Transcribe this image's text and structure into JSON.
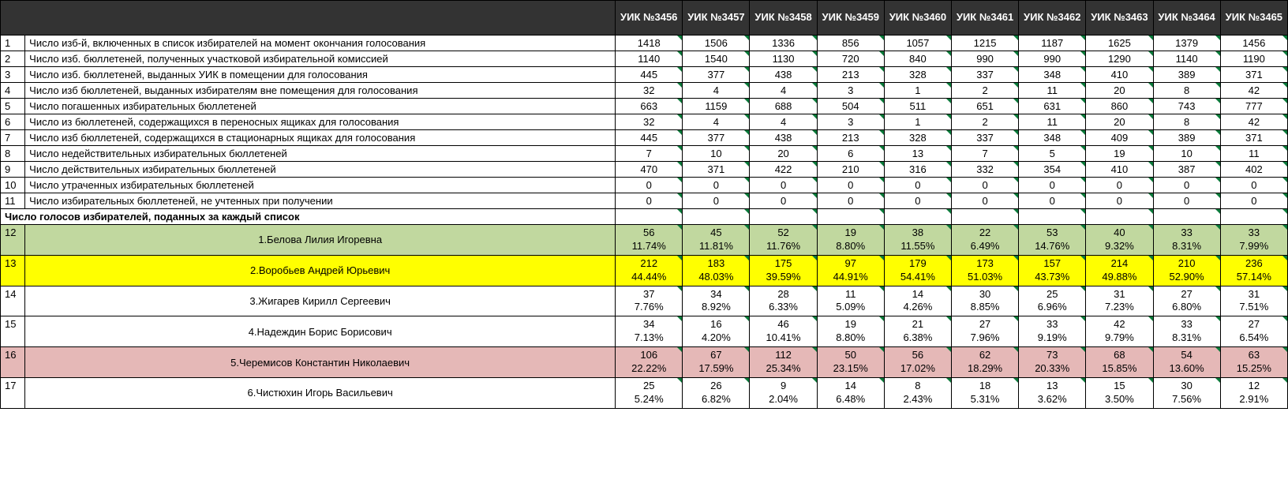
{
  "headers": {
    "label": "",
    "cols": [
      "УИК №3456",
      "УИК №3457",
      "УИК №3458",
      "УИК №3459",
      "УИК №3460",
      "УИК №3461",
      "УИК №3462",
      "УИК №3463",
      "УИК №3464",
      "УИК №3465"
    ]
  },
  "rows": [
    {
      "n": "1",
      "label": "Число изб-й, включенных в список избирателей на момент окончания голосования",
      "vals": [
        "1418",
        "1506",
        "1336",
        "856",
        "1057",
        "1215",
        "1187",
        "1625",
        "1379",
        "1456"
      ]
    },
    {
      "n": "2",
      "label": "Число изб. бюллетеней, полученных участковой избирательной комиссией",
      "vals": [
        "1140",
        "1540",
        "1130",
        "720",
        "840",
        "990",
        "990",
        "1290",
        "1140",
        "1190"
      ]
    },
    {
      "n": "3",
      "label": "Число изб. бюллетеней, выданных УИК в помещении для голосования",
      "vals": [
        "445",
        "377",
        "438",
        "213",
        "328",
        "337",
        "348",
        "410",
        "389",
        "371"
      ]
    },
    {
      "n": "4",
      "label": "Число изб бюллетеней, выданных избирателям вне помещения для голосования",
      "vals": [
        "32",
        "4",
        "4",
        "3",
        "1",
        "2",
        "11",
        "20",
        "8",
        "42"
      ]
    },
    {
      "n": "5",
      "label": "Число погашенных избирательных бюллетеней",
      "vals": [
        "663",
        "1159",
        "688",
        "504",
        "511",
        "651",
        "631",
        "860",
        "743",
        "777"
      ]
    },
    {
      "n": "6",
      "label": "Число из бюллетеней, содержащихся в переносных ящиках для голосования",
      "vals": [
        "32",
        "4",
        "4",
        "3",
        "1",
        "2",
        "11",
        "20",
        "8",
        "42"
      ]
    },
    {
      "n": "7",
      "label": "Число изб бюллетеней, содержащихся в стационарных ящиках для голосования",
      "vals": [
        "445",
        "377",
        "438",
        "213",
        "328",
        "337",
        "348",
        "409",
        "389",
        "371"
      ]
    },
    {
      "n": "8",
      "label": "Число недействительных избирательных бюллетеней",
      "vals": [
        "7",
        "10",
        "20",
        "6",
        "13",
        "7",
        "5",
        "19",
        "10",
        "11"
      ]
    },
    {
      "n": "9",
      "label": "Число действительных избирательных бюллетеней",
      "vals": [
        "470",
        "371",
        "422",
        "210",
        "316",
        "332",
        "354",
        "410",
        "387",
        "402"
      ]
    },
    {
      "n": "10",
      "label": "Число утраченных избирательных бюллетеней",
      "vals": [
        "0",
        "0",
        "0",
        "0",
        "0",
        "0",
        "0",
        "0",
        "0",
        "0"
      ]
    },
    {
      "n": "11",
      "label": "Число избирательных бюллетеней, не учтенных при получении",
      "vals": [
        "0",
        "0",
        "0",
        "0",
        "0",
        "0",
        "0",
        "0",
        "0",
        "0"
      ]
    }
  ],
  "section_title": "Число голосов избирателей, поданных за каждый список",
  "candidates": [
    {
      "n": "12",
      "label": "1.Белова Лилия Игоревна",
      "bg": "bg-green",
      "vals": [
        {
          "v": "56",
          "p": "11.74%"
        },
        {
          "v": "45",
          "p": "11.81%"
        },
        {
          "v": "52",
          "p": "11.76%"
        },
        {
          "v": "19",
          "p": "8.80%"
        },
        {
          "v": "38",
          "p": "11.55%"
        },
        {
          "v": "22",
          "p": "6.49%"
        },
        {
          "v": "53",
          "p": "14.76%"
        },
        {
          "v": "40",
          "p": "9.32%"
        },
        {
          "v": "33",
          "p": "8.31%"
        },
        {
          "v": "33",
          "p": "7.99%"
        }
      ]
    },
    {
      "n": "13",
      "label": "2.Воробьев Андрей Юрьевич",
      "bg": "bg-yellow",
      "vals": [
        {
          "v": "212",
          "p": "44.44%"
        },
        {
          "v": "183",
          "p": "48.03%"
        },
        {
          "v": "175",
          "p": "39.59%"
        },
        {
          "v": "97",
          "p": "44.91%"
        },
        {
          "v": "179",
          "p": "54.41%"
        },
        {
          "v": "173",
          "p": "51.03%"
        },
        {
          "v": "157",
          "p": "43.73%"
        },
        {
          "v": "214",
          "p": "49.88%"
        },
        {
          "v": "210",
          "p": "52.90%"
        },
        {
          "v": "236",
          "p": "57.14%"
        }
      ]
    },
    {
      "n": "14",
      "label": "3.Жигарев Кирилл Сергеевич",
      "bg": "",
      "vals": [
        {
          "v": "37",
          "p": "7.76%"
        },
        {
          "v": "34",
          "p": "8.92%"
        },
        {
          "v": "28",
          "p": "6.33%"
        },
        {
          "v": "11",
          "p": "5.09%"
        },
        {
          "v": "14",
          "p": "4.26%"
        },
        {
          "v": "30",
          "p": "8.85%"
        },
        {
          "v": "25",
          "p": "6.96%"
        },
        {
          "v": "31",
          "p": "7.23%"
        },
        {
          "v": "27",
          "p": "6.80%"
        },
        {
          "v": "31",
          "p": "7.51%"
        }
      ]
    },
    {
      "n": "15",
      "label": "4.Надеждин Борис Борисович",
      "bg": "",
      "vals": [
        {
          "v": "34",
          "p": "7.13%"
        },
        {
          "v": "16",
          "p": "4.20%"
        },
        {
          "v": "46",
          "p": "10.41%"
        },
        {
          "v": "19",
          "p": "8.80%"
        },
        {
          "v": "21",
          "p": "6.38%"
        },
        {
          "v": "27",
          "p": "7.96%"
        },
        {
          "v": "33",
          "p": "9.19%"
        },
        {
          "v": "42",
          "p": "9.79%"
        },
        {
          "v": "33",
          "p": "8.31%"
        },
        {
          "v": "27",
          "p": "6.54%"
        }
      ]
    },
    {
      "n": "16",
      "label": "5.Черемисов Константин Николаевич",
      "bg": "bg-pink",
      "vals": [
        {
          "v": "106",
          "p": "22.22%"
        },
        {
          "v": "67",
          "p": "17.59%"
        },
        {
          "v": "112",
          "p": "25.34%"
        },
        {
          "v": "50",
          "p": "23.15%"
        },
        {
          "v": "56",
          "p": "17.02%"
        },
        {
          "v": "62",
          "p": "18.29%"
        },
        {
          "v": "73",
          "p": "20.33%"
        },
        {
          "v": "68",
          "p": "15.85%"
        },
        {
          "v": "54",
          "p": "13.60%"
        },
        {
          "v": "63",
          "p": "15.25%"
        }
      ]
    },
    {
      "n": "17",
      "label": "6.Чистюхин Игорь Васильевич",
      "bg": "",
      "vals": [
        {
          "v": "25",
          "p": "5.24%"
        },
        {
          "v": "26",
          "p": "6.82%"
        },
        {
          "v": "9",
          "p": "2.04%"
        },
        {
          "v": "14",
          "p": "6.48%"
        },
        {
          "v": "8",
          "p": "2.43%"
        },
        {
          "v": "18",
          "p": "5.31%"
        },
        {
          "v": "13",
          "p": "3.62%"
        },
        {
          "v": "15",
          "p": "3.50%"
        },
        {
          "v": "30",
          "p": "7.56%"
        },
        {
          "v": "12",
          "p": "2.91%"
        }
      ]
    }
  ],
  "colors": {
    "header_bg": "#333333",
    "header_text": "#ffffff",
    "green": "#c1d89f",
    "yellow": "#ffff00",
    "pink": "#e5b8b7",
    "border": "#000000",
    "corner": "#0a7a3a"
  },
  "font": {
    "family": "Arial",
    "size_pt": 10
  }
}
